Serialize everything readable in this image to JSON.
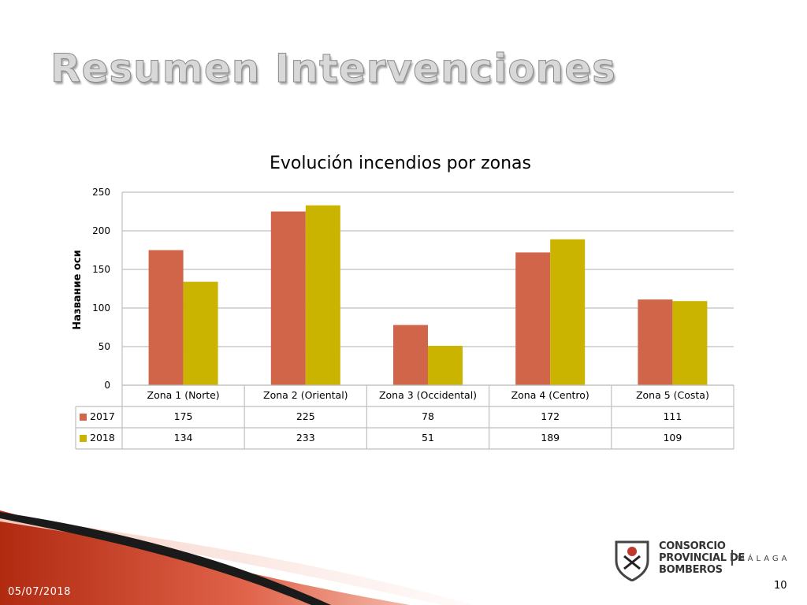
{
  "slide": {
    "title": "Resumen Intervenciones",
    "date": "05/07/2018",
    "page_number": "10"
  },
  "logo": {
    "line1": "CONSORCIO",
    "line2": "PROVINCIAL DE",
    "line3": "BOMBEROS",
    "city": "MÁLAGA"
  },
  "colors": {
    "series_2017": "#d0654a",
    "series_2018": "#cbb400",
    "gridline": "#bfbfbf",
    "table_border": "#bfbfbf",
    "decor_red": "#b02a10",
    "decor_dark": "#1a1a1a"
  },
  "chart_data": {
    "type": "bar",
    "title": "Evolución incendios por zonas",
    "ylabel": "Название оси",
    "xlabel": "",
    "ylim": [
      0,
      250
    ],
    "yticks": [
      0,
      50,
      100,
      150,
      200,
      250
    ],
    "grid": true,
    "legend": "data-table",
    "categories": [
      "Zona 1 (Norte)",
      "Zona 2 (Oriental)",
      "Zona 3 (Occidental)",
      "Zona 4 (Centro)",
      "Zona 5 (Costa)"
    ],
    "series": [
      {
        "name": "2017",
        "values": [
          175,
          225,
          78,
          172,
          111
        ]
      },
      {
        "name": "2018",
        "values": [
          134,
          233,
          51,
          189,
          109
        ]
      }
    ]
  }
}
